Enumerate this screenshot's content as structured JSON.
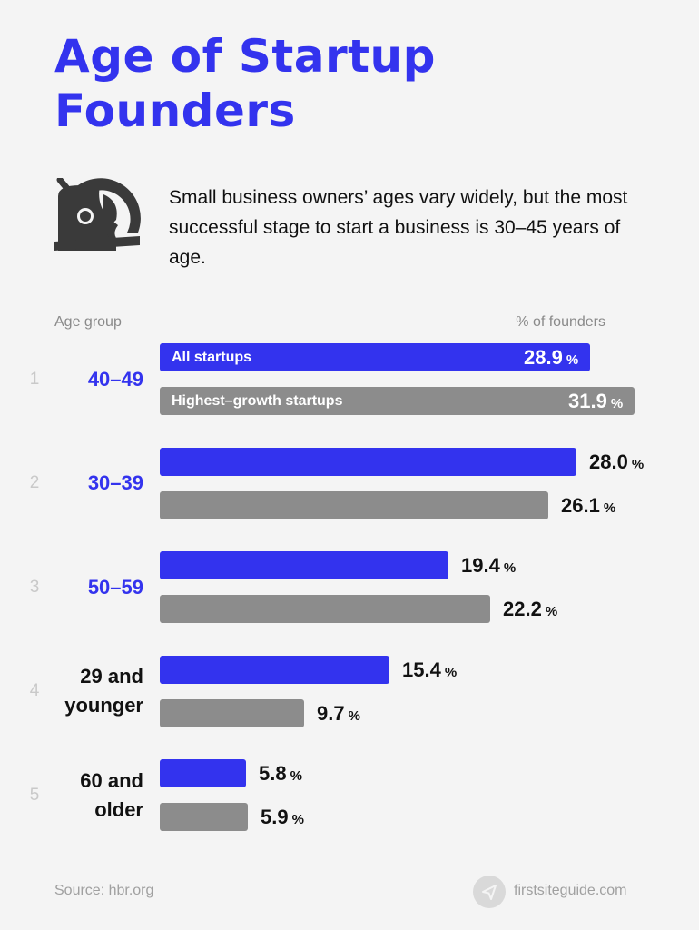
{
  "title_line1": "Age of Startup",
  "title_line2": "Founders",
  "intro": "Small business owners’ ages vary widely, but the most successful stage to start a business is 30–45 years of age.",
  "colors": {
    "all": "#3333ee",
    "high": "#8c8c8c",
    "accent": "#3333ee"
  },
  "chart_data": {
    "type": "bar",
    "orientation": "horizontal",
    "category_header": "Age group",
    "value_header": "% of founders",
    "unit": "%",
    "categories": [
      "40–49",
      "30–39",
      "50–59",
      "29 and younger",
      "60 and older"
    ],
    "category_lines": [
      [
        "40–49"
      ],
      [
        "30–39"
      ],
      [
        "50–59"
      ],
      [
        "29 and",
        "younger"
      ],
      [
        "60 and",
        "older"
      ]
    ],
    "ranks": [
      "1",
      "2",
      "3",
      "4",
      "5"
    ],
    "highlighted": [
      true,
      true,
      true,
      false,
      false
    ],
    "series": [
      {
        "name": "All startups",
        "values": [
          28.9,
          28.0,
          19.4,
          15.4,
          5.8
        ]
      },
      {
        "name": "Highest–growth startups",
        "values": [
          31.9,
          26.1,
          22.2,
          9.7,
          5.9
        ]
      }
    ],
    "value_labels": [
      [
        "28.9",
        "28.0",
        "19.4",
        "15.4",
        "5.8"
      ],
      [
        "31.9",
        "26.1",
        "22.2",
        "9.7",
        "5.9"
      ]
    ],
    "legend_placement": "inside first bars",
    "grid": false
  },
  "footer": {
    "source": "Source: hbr.org",
    "brand": "firstsiteguide.com"
  }
}
